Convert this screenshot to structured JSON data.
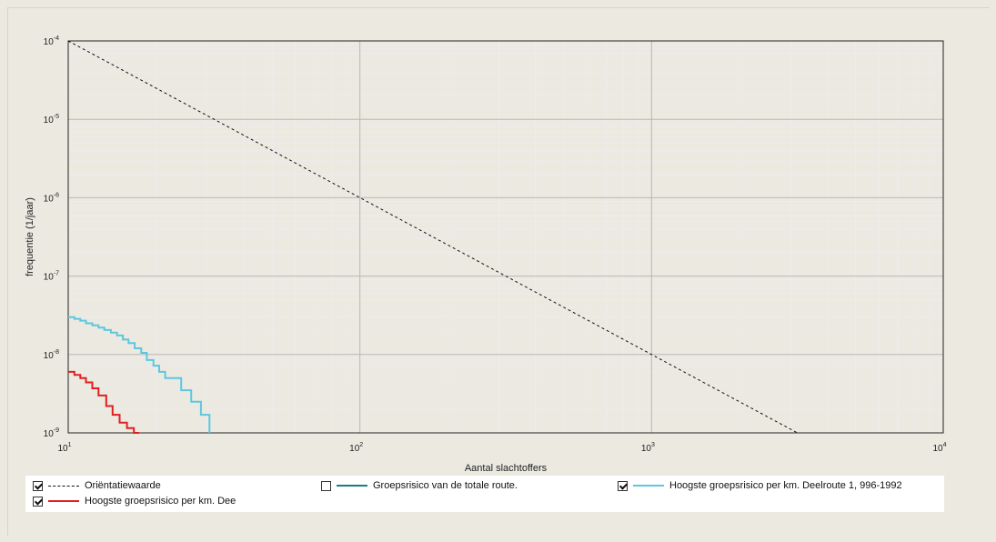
{
  "chart_data": {
    "type": "line",
    "title": "",
    "xlabel": "Aantal slachtoffers",
    "ylabel": "frequentie (1/jaar)",
    "xscale": "log",
    "yscale": "log",
    "xlim": [
      10,
      10000
    ],
    "ylim": [
      1e-09,
      0.0001
    ],
    "grid": true,
    "legend_position": "bottom",
    "x_ticks": [
      {
        "value": 10,
        "base": "10",
        "exp": "1"
      },
      {
        "value": 100,
        "base": "10",
        "exp": "2"
      },
      {
        "value": 1000,
        "base": "10",
        "exp": "3"
      },
      {
        "value": 10000,
        "base": "10",
        "exp": "4"
      }
    ],
    "y_ticks": [
      {
        "value": 0.0001,
        "base": "10",
        "exp": "-4"
      },
      {
        "value": 1e-05,
        "base": "10",
        "exp": "-5"
      },
      {
        "value": 1e-06,
        "base": "10",
        "exp": "-6"
      },
      {
        "value": 1e-07,
        "base": "10",
        "exp": "-7"
      },
      {
        "value": 1e-08,
        "base": "10",
        "exp": "-8"
      },
      {
        "value": 1e-09,
        "base": "10",
        "exp": "-9"
      }
    ],
    "series": [
      {
        "name": "Oriëntatiewaarde",
        "color": "#111111",
        "style": "dashed",
        "visible": true,
        "x": [
          10,
          100,
          1000,
          3162
        ],
        "y": [
          0.0001,
          1e-06,
          1e-08,
          1e-09
        ]
      },
      {
        "name": "Groepsrisico van de totale route.",
        "color": "#1b7a84",
        "style": "solid",
        "visible": false,
        "x": [],
        "y": []
      },
      {
        "name": "Hoogste groepsrisico per km. Deelroute 1, 996-1992",
        "color": "#5bc8e0",
        "style": "step",
        "visible": true,
        "x": [
          10,
          10.5,
          11.0,
          11.5,
          12.1,
          12.7,
          13.3,
          14.0,
          14.7,
          15.4,
          16.1,
          16.9,
          17.8,
          18.6,
          19.6,
          20.5,
          21.5,
          22.6,
          24.4,
          26.4,
          28.5,
          30.5
        ],
        "y": [
          3e-08,
          2.85e-08,
          2.7e-08,
          2.5e-08,
          2.35e-08,
          2.2e-08,
          2.05e-08,
          1.9e-08,
          1.75e-08,
          1.55e-08,
          1.4e-08,
          1.2e-08,
          1.05e-08,
          8.5e-09,
          7.2e-09,
          6e-09,
          5e-09,
          5e-09,
          3.5e-09,
          2.5e-09,
          1.7e-09,
          1e-09
        ]
      },
      {
        "name": "Hoogste groepsrisico per km. Dee",
        "color": "#e02020",
        "style": "step",
        "visible": true,
        "x": [
          10,
          10.5,
          11.0,
          11.5,
          12.1,
          12.7,
          13.5,
          14.2,
          15.0,
          15.9,
          16.8,
          17.5
        ],
        "y": [
          6e-09,
          5.5e-09,
          5e-09,
          4.4e-09,
          3.7e-09,
          3e-09,
          2.2e-09,
          1.7e-09,
          1.35e-09,
          1.15e-09,
          1e-09,
          1e-09
        ]
      }
    ]
  }
}
